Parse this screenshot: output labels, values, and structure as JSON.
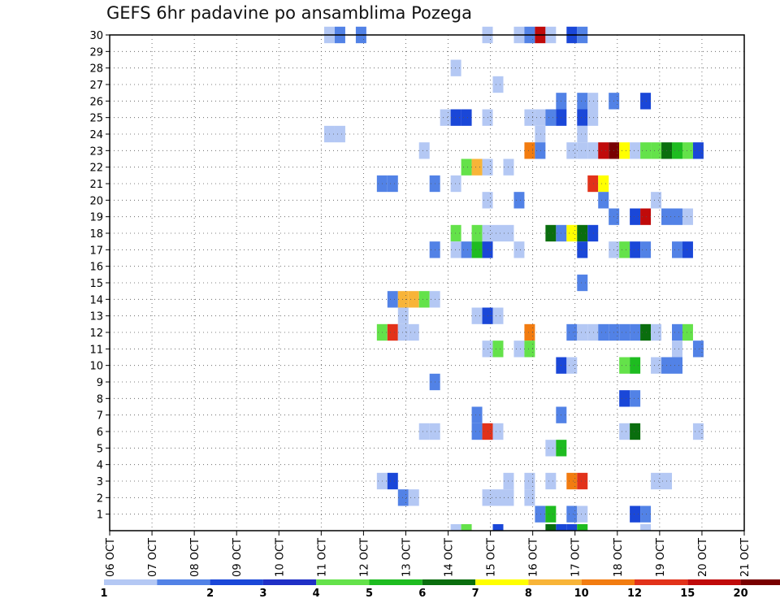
{
  "chart_data": {
    "type": "heatmap",
    "title": "GEFS 6hr padavine po ansamblima Pozega",
    "xlabel": "",
    "ylabel": "",
    "x_ticks": [
      "06 OCT",
      "07 OCT",
      "08 OCT",
      "09 OCT",
      "10 OCT",
      "11 OCT",
      "12 OCT",
      "13 OCT",
      "14 OCT",
      "15 OCT",
      "16 OCT",
      "17 OCT",
      "18 OCT",
      "19 OCT",
      "20 OCT",
      "21 OCT"
    ],
    "y_ticks": [
      1,
      2,
      3,
      4,
      5,
      6,
      7,
      8,
      9,
      10,
      11,
      12,
      13,
      14,
      15,
      16,
      17,
      18,
      19,
      20,
      21,
      22,
      23,
      24,
      25,
      26,
      27,
      28,
      29,
      30
    ],
    "xlim": [
      0,
      60
    ],
    "ylim": [
      0,
      30
    ],
    "grid": true,
    "colorbar": {
      "labels": [
        "1",
        "2",
        "3",
        "4",
        "5",
        "6",
        "7",
        "8",
        "10",
        "12",
        "15",
        "20"
      ],
      "colors": [
        "#b4c8f4",
        "#5282e6",
        "#1a47d8",
        "#1f2fc6",
        "#64e24a",
        "#1ebc20",
        "#0a6e0e",
        "#ffff00",
        "#f8b438",
        "#f27c10",
        "#e2321a",
        "#c00a0a",
        "#780000"
      ]
    },
    "cells": [
      [
        0,
        30,
        "#b4c8f4"
      ],
      [
        1,
        30,
        "#5282e6"
      ],
      [
        3,
        30,
        "#5282e6"
      ],
      [
        15,
        30,
        "#b4c8f4"
      ],
      [
        18,
        30,
        "#b4c8f4"
      ],
      [
        19,
        30,
        "#5282e6"
      ],
      [
        20,
        30,
        "#c00a0a"
      ],
      [
        21,
        30,
        "#b4c8f4"
      ],
      [
        23,
        30,
        "#1a47d8"
      ],
      [
        24,
        30,
        "#5282e6"
      ],
      [
        12,
        28,
        "#b4c8f4"
      ],
      [
        16,
        27,
        "#b4c8f4"
      ],
      [
        22,
        26,
        "#5282e6"
      ],
      [
        24,
        26,
        "#5282e6"
      ],
      [
        25,
        26,
        "#b4c8f4"
      ],
      [
        27,
        26,
        "#5282e6"
      ],
      [
        30,
        26,
        "#1a47d8"
      ],
      [
        11,
        25,
        "#b4c8f4"
      ],
      [
        12,
        25,
        "#1a47d8"
      ],
      [
        13,
        25,
        "#1a47d8"
      ],
      [
        15,
        25,
        "#b4c8f4"
      ],
      [
        19,
        25,
        "#b4c8f4"
      ],
      [
        20,
        25,
        "#b4c8f4"
      ],
      [
        21,
        25,
        "#5282e6"
      ],
      [
        22,
        25,
        "#1a47d8"
      ],
      [
        24,
        25,
        "#1a47d8"
      ],
      [
        25,
        25,
        "#b4c8f4"
      ],
      [
        0,
        24,
        "#b4c8f4"
      ],
      [
        1,
        24,
        "#b4c8f4"
      ],
      [
        20,
        24,
        "#b4c8f4"
      ],
      [
        24,
        24,
        "#b4c8f4"
      ],
      [
        9,
        23,
        "#b4c8f4"
      ],
      [
        19,
        23,
        "#f27c10"
      ],
      [
        20,
        23,
        "#5282e6"
      ],
      [
        23,
        23,
        "#b4c8f4"
      ],
      [
        24,
        23,
        "#b4c8f4"
      ],
      [
        25,
        23,
        "#b4c8f4"
      ],
      [
        26,
        23,
        "#c00a0a"
      ],
      [
        27,
        23,
        "#780000"
      ],
      [
        28,
        23,
        "#ffff00"
      ],
      [
        29,
        23,
        "#b4c8f4"
      ],
      [
        30,
        23,
        "#64e24a"
      ],
      [
        31,
        23,
        "#64e24a"
      ],
      [
        32,
        23,
        "#0a6e0e"
      ],
      [
        33,
        23,
        "#1ebc20"
      ],
      [
        34,
        23,
        "#64e24a"
      ],
      [
        35,
        23,
        "#1a47d8"
      ],
      [
        13,
        22,
        "#64e24a"
      ],
      [
        14,
        22,
        "#f8b438"
      ],
      [
        15,
        22,
        "#b4c8f4"
      ],
      [
        17,
        22,
        "#b4c8f4"
      ],
      [
        5,
        21,
        "#5282e6"
      ],
      [
        6,
        21,
        "#5282e6"
      ],
      [
        10,
        21,
        "#5282e6"
      ],
      [
        12,
        21,
        "#b4c8f4"
      ],
      [
        25,
        21,
        "#e2321a"
      ],
      [
        26,
        21,
        "#ffff00"
      ],
      [
        15,
        20,
        "#b4c8f4"
      ],
      [
        18,
        20,
        "#5282e6"
      ],
      [
        26,
        20,
        "#5282e6"
      ],
      [
        31,
        20,
        "#b4c8f4"
      ],
      [
        27,
        19,
        "#5282e6"
      ],
      [
        29,
        19,
        "#1a47d8"
      ],
      [
        30,
        19,
        "#c00a0a"
      ],
      [
        32,
        19,
        "#5282e6"
      ],
      [
        33,
        19,
        "#5282e6"
      ],
      [
        34,
        19,
        "#b4c8f4"
      ],
      [
        12,
        18,
        "#64e24a"
      ],
      [
        14,
        18,
        "#64e24a"
      ],
      [
        15,
        18,
        "#b4c8f4"
      ],
      [
        16,
        18,
        "#b4c8f4"
      ],
      [
        17,
        18,
        "#b4c8f4"
      ],
      [
        21,
        18,
        "#0a6e0e"
      ],
      [
        22,
        18,
        "#5282e6"
      ],
      [
        23,
        18,
        "#ffff00"
      ],
      [
        24,
        18,
        "#0a6e0e"
      ],
      [
        25,
        18,
        "#1a47d8"
      ],
      [
        10,
        17,
        "#5282e6"
      ],
      [
        12,
        17,
        "#b4c8f4"
      ],
      [
        13,
        17,
        "#5282e6"
      ],
      [
        14,
        17,
        "#1ebc20"
      ],
      [
        15,
        17,
        "#1a47d8"
      ],
      [
        18,
        17,
        "#b4c8f4"
      ],
      [
        24,
        17,
        "#1a47d8"
      ],
      [
        27,
        17,
        "#b4c8f4"
      ],
      [
        28,
        17,
        "#64e24a"
      ],
      [
        29,
        17,
        "#1a47d8"
      ],
      [
        30,
        17,
        "#5282e6"
      ],
      [
        33,
        17,
        "#5282e6"
      ],
      [
        34,
        17,
        "#1a47d8"
      ],
      [
        24,
        15,
        "#5282e6"
      ],
      [
        6,
        14,
        "#5282e6"
      ],
      [
        7,
        14,
        "#f8b438"
      ],
      [
        8,
        14,
        "#f8b438"
      ],
      [
        9,
        14,
        "#64e24a"
      ],
      [
        10,
        14,
        "#b4c8f4"
      ],
      [
        7,
        13,
        "#b4c8f4"
      ],
      [
        14,
        13,
        "#b4c8f4"
      ],
      [
        15,
        13,
        "#1a47d8"
      ],
      [
        16,
        13,
        "#b4c8f4"
      ],
      [
        5,
        12,
        "#64e24a"
      ],
      [
        6,
        12,
        "#e2321a"
      ],
      [
        7,
        12,
        "#b4c8f4"
      ],
      [
        8,
        12,
        "#b4c8f4"
      ],
      [
        19,
        12,
        "#f27c10"
      ],
      [
        23,
        12,
        "#5282e6"
      ],
      [
        24,
        12,
        "#b4c8f4"
      ],
      [
        25,
        12,
        "#b4c8f4"
      ],
      [
        26,
        12,
        "#5282e6"
      ],
      [
        27,
        12,
        "#5282e6"
      ],
      [
        28,
        12,
        "#5282e6"
      ],
      [
        29,
        12,
        "#5282e6"
      ],
      [
        30,
        12,
        "#0a6e0e"
      ],
      [
        31,
        12,
        "#b4c8f4"
      ],
      [
        33,
        12,
        "#5282e6"
      ],
      [
        34,
        12,
        "#64e24a"
      ],
      [
        15,
        11,
        "#b4c8f4"
      ],
      [
        16,
        11,
        "#64e24a"
      ],
      [
        18,
        11,
        "#b4c8f4"
      ],
      [
        19,
        11,
        "#64e24a"
      ],
      [
        33,
        11,
        "#b4c8f4"
      ],
      [
        35,
        11,
        "#5282e6"
      ],
      [
        22,
        10,
        "#1a47d8"
      ],
      [
        23,
        10,
        "#b4c8f4"
      ],
      [
        28,
        10,
        "#64e24a"
      ],
      [
        29,
        10,
        "#1ebc20"
      ],
      [
        31,
        10,
        "#b4c8f4"
      ],
      [
        32,
        10,
        "#5282e6"
      ],
      [
        33,
        10,
        "#5282e6"
      ],
      [
        10,
        9,
        "#5282e6"
      ],
      [
        28,
        8,
        "#1a47d8"
      ],
      [
        29,
        8,
        "#5282e6"
      ],
      [
        14,
        7,
        "#5282e6"
      ],
      [
        22,
        7,
        "#5282e6"
      ],
      [
        9,
        6,
        "#b4c8f4"
      ],
      [
        10,
        6,
        "#b4c8f4"
      ],
      [
        14,
        6,
        "#5282e6"
      ],
      [
        15,
        6,
        "#e2321a"
      ],
      [
        16,
        6,
        "#b4c8f4"
      ],
      [
        28,
        6,
        "#b4c8f4"
      ],
      [
        29,
        6,
        "#0a6e0e"
      ],
      [
        35,
        6,
        "#b4c8f4"
      ],
      [
        21,
        5,
        "#b4c8f4"
      ],
      [
        22,
        5,
        "#1ebc20"
      ],
      [
        5,
        3,
        "#b4c8f4"
      ],
      [
        6,
        3,
        "#1a47d8"
      ],
      [
        17,
        3,
        "#b4c8f4"
      ],
      [
        19,
        3,
        "#b4c8f4"
      ],
      [
        21,
        3,
        "#b4c8f4"
      ],
      [
        23,
        3,
        "#f27c10"
      ],
      [
        24,
        3,
        "#e2321a"
      ],
      [
        31,
        3,
        "#b4c8f4"
      ],
      [
        32,
        3,
        "#b4c8f4"
      ],
      [
        7,
        2,
        "#5282e6"
      ],
      [
        8,
        2,
        "#b4c8f4"
      ],
      [
        15,
        2,
        "#b4c8f4"
      ],
      [
        16,
        2,
        "#b4c8f4"
      ],
      [
        17,
        2,
        "#b4c8f4"
      ],
      [
        19,
        2,
        "#b4c8f4"
      ],
      [
        20,
        1,
        "#5282e6"
      ],
      [
        21,
        1,
        "#1ebc20"
      ],
      [
        23,
        1,
        "#5282e6"
      ],
      [
        24,
        1,
        "#b4c8f4"
      ],
      [
        29,
        1,
        "#1a47d8"
      ],
      [
        30,
        1,
        "#5282e6"
      ],
      [
        12,
        0,
        "#b4c8f4"
      ],
      [
        13,
        0,
        "#64e24a"
      ],
      [
        16,
        0,
        "#1a47d8"
      ],
      [
        21,
        0,
        "#0a6e0e"
      ],
      [
        22,
        0,
        "#1a47d8"
      ],
      [
        23,
        0,
        "#1a47d8"
      ],
      [
        24,
        0,
        "#1ebc20"
      ],
      [
        30,
        0,
        "#b4c8f4"
      ]
    ]
  }
}
